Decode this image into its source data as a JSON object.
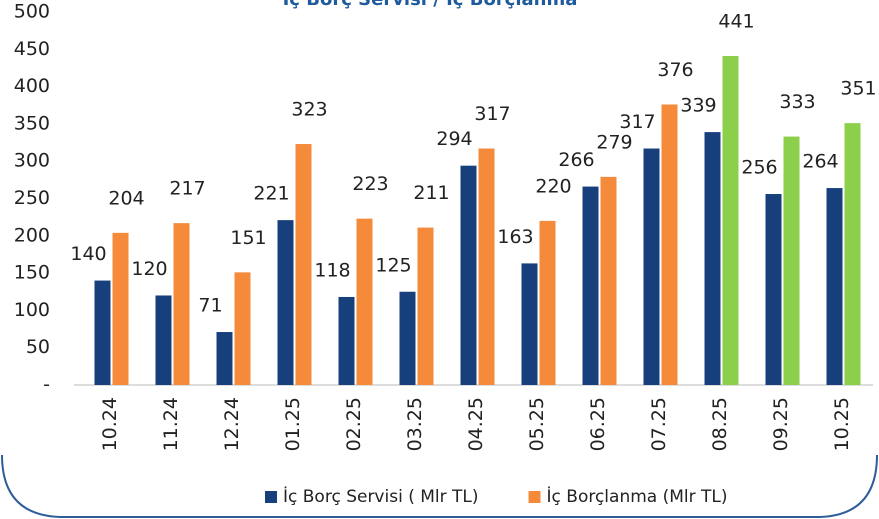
{
  "chart_data": {
    "type": "bar",
    "title": "İç Borç Servisi / İç Borçlanma",
    "categories": [
      "10.24",
      "11.24",
      "12.24",
      "01.25",
      "02.25",
      "03.25",
      "04.25",
      "05.25",
      "06.25",
      "07.25",
      "08.25",
      "09.25",
      "10.25"
    ],
    "series": [
      {
        "name": "İç Borç Servisi ( Mlr TL)",
        "color": "#173f7c",
        "values": [
          140,
          120,
          71,
          221,
          118,
          125,
          294,
          163,
          266,
          317,
          339,
          256,
          264
        ]
      },
      {
        "name": "İç Borçlanma (Mlr TL)",
        "color": "#f58a3a",
        "colors": [
          "#f58a3a",
          "#f58a3a",
          "#f58a3a",
          "#f58a3a",
          "#f58a3a",
          "#f58a3a",
          "#f58a3a",
          "#f58a3a",
          "#f58a3a",
          "#f58a3a",
          "#8ccf4a",
          "#8ccf4a",
          "#8ccf4a"
        ],
        "values": [
          204,
          217,
          151,
          323,
          223,
          211,
          317,
          220,
          279,
          376,
          441,
          333,
          351
        ]
      }
    ],
    "ylim": [
      0,
      500
    ],
    "yticks": [
      {
        "value": 0,
        "label": "-"
      },
      50,
      100,
      150,
      200,
      250,
      300,
      350,
      400,
      450,
      500
    ],
    "grid": false,
    "legend": "bottom"
  }
}
